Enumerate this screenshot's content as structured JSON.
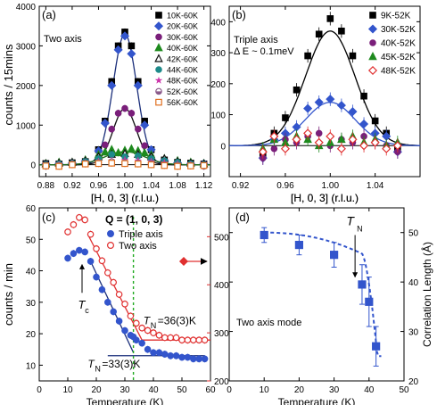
{
  "shared_labels": {
    "ylabel_top": "counts / 15mins",
    "ylabel_c": "counts / min"
  },
  "chart_data": [
    {
      "panel": "(a)",
      "type": "scatter",
      "annotation": "Two axis",
      "xlabel": "[H, 0, 3] (r.l.u.)",
      "ylabel": "counts / 15mins",
      "xlim": [
        0.87,
        1.13
      ],
      "ylim": [
        -300,
        4000
      ],
      "xticks": [
        "0.88",
        "0.92",
        "0.96",
        "1.00",
        "1.04",
        "1.08",
        "1.12"
      ],
      "yticks": [
        "0",
        "1000",
        "2000",
        "3000",
        "4000"
      ],
      "legend_position": "top-right",
      "series": [
        {
          "name": "10K-60K",
          "color": "#000000",
          "marker": "square",
          "x": [
            0.88,
            0.9,
            0.92,
            0.94,
            0.96,
            0.97,
            0.98,
            0.99,
            1.0,
            1.01,
            1.02,
            1.03,
            1.04,
            1.06,
            1.08,
            1.1,
            1.12
          ],
          "y": [
            30,
            20,
            50,
            80,
            380,
            1100,
            2100,
            3000,
            3350,
            3000,
            2100,
            1100,
            380,
            120,
            60,
            40,
            20
          ]
        },
        {
          "name": "20K-60K",
          "color": "#3355cc",
          "marker": "diamond",
          "x": [
            0.88,
            0.9,
            0.92,
            0.94,
            0.96,
            0.97,
            0.98,
            0.99,
            1.0,
            1.01,
            1.02,
            1.03,
            1.04,
            1.06,
            1.08,
            1.1,
            1.12
          ],
          "y": [
            20,
            30,
            40,
            90,
            350,
            1050,
            2000,
            2900,
            3250,
            2800,
            2000,
            1000,
            380,
            110,
            50,
            30,
            30
          ]
        },
        {
          "name": "30K-60K",
          "color": "#7a1f7a",
          "marker": "circle",
          "x": [
            0.88,
            0.9,
            0.92,
            0.94,
            0.96,
            0.97,
            0.98,
            0.99,
            1.0,
            1.01,
            1.02,
            1.03,
            1.04,
            1.06,
            1.08,
            1.1,
            1.12
          ],
          "y": [
            10,
            20,
            30,
            60,
            200,
            500,
            900,
            1300,
            1420,
            1300,
            900,
            480,
            200,
            80,
            40,
            20,
            10
          ]
        },
        {
          "name": "40K-60K",
          "color": "#1e8a1e",
          "marker": "triangle",
          "x": [
            0.88,
            0.9,
            0.92,
            0.94,
            0.96,
            0.97,
            0.98,
            0.99,
            1.0,
            1.01,
            1.02,
            1.03,
            1.04,
            1.06,
            1.08,
            1.1,
            1.12
          ],
          "y": [
            30,
            60,
            60,
            120,
            250,
            320,
            380,
            300,
            360,
            400,
            350,
            300,
            250,
            150,
            100,
            60,
            30
          ]
        },
        {
          "name": "42K-60K",
          "color": "#111111",
          "marker": "open-triangle",
          "x": [
            0.88,
            0.9,
            0.92,
            0.94,
            0.96,
            0.98,
            1.0,
            1.02,
            1.04,
            1.06,
            1.08,
            1.1,
            1.12
          ],
          "y": [
            20,
            40,
            60,
            100,
            200,
            260,
            280,
            260,
            200,
            150,
            80,
            40,
            20
          ]
        },
        {
          "name": "44K-60K",
          "color": "#1e8a8a",
          "marker": "circle",
          "x": [
            0.88,
            0.9,
            0.92,
            0.94,
            0.96,
            0.98,
            1.0,
            1.02,
            1.04,
            1.06,
            1.08,
            1.1,
            1.12
          ],
          "y": [
            0,
            20,
            40,
            80,
            150,
            260,
            200,
            220,
            150,
            100,
            60,
            20,
            0
          ]
        },
        {
          "name": "48K-60K",
          "color": "#cc33aa",
          "marker": "star",
          "x": [
            0.88,
            0.9,
            0.92,
            0.94,
            0.96,
            0.98,
            1.0,
            1.02,
            1.04,
            1.06,
            1.08,
            1.1,
            1.12
          ],
          "y": [
            -20,
            0,
            30,
            50,
            80,
            100,
            120,
            100,
            80,
            50,
            20,
            0,
            -20
          ]
        },
        {
          "name": "52K-60K",
          "color": "#8a5a8a",
          "marker": "half-circle",
          "x": [
            0.88,
            0.9,
            0.92,
            0.94,
            0.96,
            0.98,
            1.0,
            1.02,
            1.04,
            1.06,
            1.08,
            1.1,
            1.12
          ],
          "y": [
            -40,
            -10,
            10,
            30,
            60,
            80,
            60,
            40,
            20,
            0,
            -10,
            -20,
            -40
          ]
        },
        {
          "name": "56K-60K",
          "color": "#e07020",
          "marker": "open-square",
          "x": [
            0.88,
            0.9,
            0.92,
            0.94,
            0.96,
            0.98,
            1.0,
            1.02,
            1.04,
            1.06,
            1.08,
            1.1,
            1.12
          ],
          "y": [
            -30,
            -40,
            0,
            20,
            30,
            40,
            30,
            20,
            0,
            -20,
            -40,
            -30,
            -20
          ]
        }
      ],
      "fits": [
        {
          "color": "#1a2e7a",
          "amplitude": 3300,
          "center": 1.0,
          "sigma": 0.018
        },
        {
          "color": "#111111",
          "amplitude": 1420,
          "center": 1.0,
          "sigma": 0.018
        },
        {
          "color": "#1e6a1e",
          "amplitude": 330,
          "center": 1.0,
          "sigma": 0.03
        }
      ]
    },
    {
      "panel": "(b)",
      "type": "scatter",
      "annotation_lines": [
        "Triple axis",
        "Δ E ~ 0.1meV"
      ],
      "xlabel": "[H, 0, 3] (r.l.u.)",
      "ylabel": "",
      "xlim": [
        0.91,
        1.08
      ],
      "ylim": [
        -100,
        450
      ],
      "xticks": [
        "0.92",
        "0.96",
        "1.00",
        "1.04"
      ],
      "yticks": [
        "0",
        "100",
        "200",
        "300",
        "400"
      ],
      "legend_position": "top-right",
      "series": [
        {
          "name": "9K-52K",
          "color": "#000000",
          "marker": "square",
          "x": [
            0.94,
            0.95,
            0.96,
            0.97,
            0.98,
            0.99,
            1.0,
            1.01,
            1.02,
            1.03,
            1.04,
            1.05,
            1.06
          ],
          "y": [
            -30,
            40,
            90,
            180,
            290,
            360,
            410,
            370,
            290,
            160,
            80,
            40,
            -10
          ]
        },
        {
          "name": "30K-52K",
          "color": "#3355cc",
          "marker": "diamond",
          "x": [
            0.94,
            0.95,
            0.96,
            0.97,
            0.98,
            0.99,
            1.0,
            1.01,
            1.02,
            1.03,
            1.04,
            1.05,
            1.06
          ],
          "y": [
            -40,
            20,
            40,
            60,
            120,
            140,
            150,
            130,
            110,
            70,
            40,
            30,
            -20
          ]
        },
        {
          "name": "40K-52K",
          "color": "#7a1f7a",
          "marker": "circle",
          "x": [
            0.94,
            0.95,
            0.96,
            0.97,
            0.98,
            0.99,
            1.0,
            1.01,
            1.02,
            1.03,
            1.04,
            1.05,
            1.06
          ],
          "y": [
            -40,
            -10,
            20,
            10,
            30,
            40,
            0,
            20,
            10,
            30,
            10,
            0,
            -20
          ]
        },
        {
          "name": "45K-52K",
          "color": "#1e8a1e",
          "marker": "triangle",
          "x": [
            0.94,
            0.95,
            0.96,
            0.97,
            0.98,
            0.99,
            1.0,
            1.01,
            1.02,
            1.03,
            1.04,
            1.05,
            1.06
          ],
          "y": [
            -10,
            20,
            10,
            30,
            20,
            0,
            10,
            20,
            30,
            10,
            20,
            0,
            10
          ]
        },
        {
          "name": "48K-52K",
          "color": "#e03030",
          "marker": "open-diamond",
          "x": [
            0.94,
            0.95,
            0.96,
            0.97,
            0.98,
            0.99,
            1.0,
            1.01,
            1.02,
            1.03,
            1.04,
            1.05,
            1.06
          ],
          "y": [
            -20,
            30,
            -10,
            20,
            40,
            10,
            30,
            -10,
            20,
            0,
            10,
            -10,
            0
          ]
        }
      ],
      "fits": [
        {
          "color": "#000000",
          "amplitude": 370,
          "center": 1.0,
          "sigma": 0.022
        },
        {
          "color": "#3355cc",
          "amplitude": 140,
          "center": 1.0,
          "sigma": 0.022
        }
      ]
    },
    {
      "panel": "(c)",
      "type": "scatter",
      "annotation": "Q = (1, 0, 3)",
      "xlabel": "Temperature (K)",
      "ylabel": "counts / min",
      "xlim": [
        0,
        60
      ],
      "ylim": [
        5,
        60
      ],
      "y2lim": [
        200,
        560
      ],
      "xticks": [
        "0",
        "10",
        "20",
        "30",
        "40",
        "50",
        "60"
      ],
      "yticks": [
        "10",
        "20",
        "30",
        "40",
        "50",
        "60"
      ],
      "y2ticks": [
        "200",
        "300",
        "400",
        "500"
      ],
      "legend_position": "top-right",
      "series": [
        {
          "name": "Triple axis",
          "color": "#3355cc",
          "marker": "circle",
          "axis": "left",
          "x": [
            10,
            12,
            14,
            16,
            18,
            20,
            22,
            24,
            26,
            28,
            30,
            32,
            33,
            34,
            36,
            38,
            40,
            42,
            44,
            46,
            48,
            50,
            52,
            54,
            56,
            58
          ],
          "y": [
            44,
            45.5,
            46.5,
            46,
            43,
            38,
            34,
            30,
            27,
            24,
            21,
            19.5,
            19,
            18,
            17,
            15,
            14,
            14,
            13.5,
            13,
            13,
            12.5,
            12.5,
            12,
            12,
            12
          ]
        },
        {
          "name": "Two axis",
          "color": "#e03030",
          "marker": "open-circle",
          "axis": "right",
          "x": [
            10,
            12,
            14,
            16,
            18,
            20,
            22,
            24,
            26,
            28,
            30,
            32,
            34,
            36,
            38,
            40,
            42,
            44,
            46,
            48,
            50,
            52,
            54,
            56,
            58
          ],
          "y": [
            510,
            525,
            540,
            535,
            505,
            475,
            450,
            425,
            405,
            380,
            360,
            335,
            320,
            310,
            305,
            300,
            295,
            290,
            290,
            290,
            285,
            285,
            285,
            285,
            285
          ]
        }
      ],
      "annotations": [
        "T",
        "c",
        "T",
        "N",
        "=36(3)K",
        "T",
        "N",
        "=33(3)K"
      ],
      "dashed_vline_x": 33
    },
    {
      "panel": "(d)",
      "type": "line",
      "annotation": "Two axis mode",
      "xlabel": "Temperature (K)",
      "ylabel": "Correlation Length (Å)",
      "xlim": [
        0,
        50
      ],
      "ylim": [
        20,
        55
      ],
      "xticks": [
        "0",
        "10",
        "20",
        "30",
        "40",
        "50"
      ],
      "yticks": [
        "20",
        "30",
        "40",
        "50"
      ],
      "arrow_label": [
        "T",
        "N"
      ],
      "series": [
        {
          "name": "",
          "color": "#3355cc",
          "marker": "square",
          "x": [
            10,
            20,
            30,
            38,
            40,
            42
          ],
          "y": [
            49.5,
            47.5,
            45.5,
            39.5,
            36,
            27
          ],
          "err": [
            1.5,
            2,
            2.5,
            4,
            5,
            4
          ]
        }
      ]
    }
  ]
}
